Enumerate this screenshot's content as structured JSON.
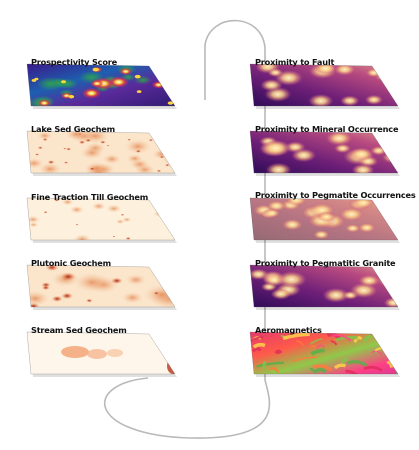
{
  "left_layers": [
    {
      "label": "Prospectivity Score",
      "palette": "prospectivity"
    },
    {
      "label": "Lake Sed Geochem",
      "palette": "geochem-dense"
    },
    {
      "label": "Fine Traction Till Geochem",
      "palette": "geochem-light"
    },
    {
      "label": "Plutonic Geochem",
      "palette": "geochem-mid"
    },
    {
      "label": "Stream Sed Geochem",
      "palette": "geochem-sparse"
    }
  ],
  "right_layers": [
    {
      "label": "Proximity to Fault",
      "palette": "proximity"
    },
    {
      "label": "Proximity to Mineral Occurrence",
      "palette": "proximity"
    },
    {
      "label": "Proximity to Pegmatite Occurrences",
      "palette": "proximity-light"
    },
    {
      "label": "Proximity to Pegmatitic Granite",
      "palette": "proximity"
    },
    {
      "label": "Aeromagnetics",
      "palette": "aeromagnetics"
    }
  ],
  "colors": {
    "connector": "#b9b9b9",
    "proximity_dark": "#3a0f63",
    "proximity_light": "#fff3c8",
    "geochem_base": "#fbe6cc",
    "geochem_hot": "#9a1c0e"
  }
}
